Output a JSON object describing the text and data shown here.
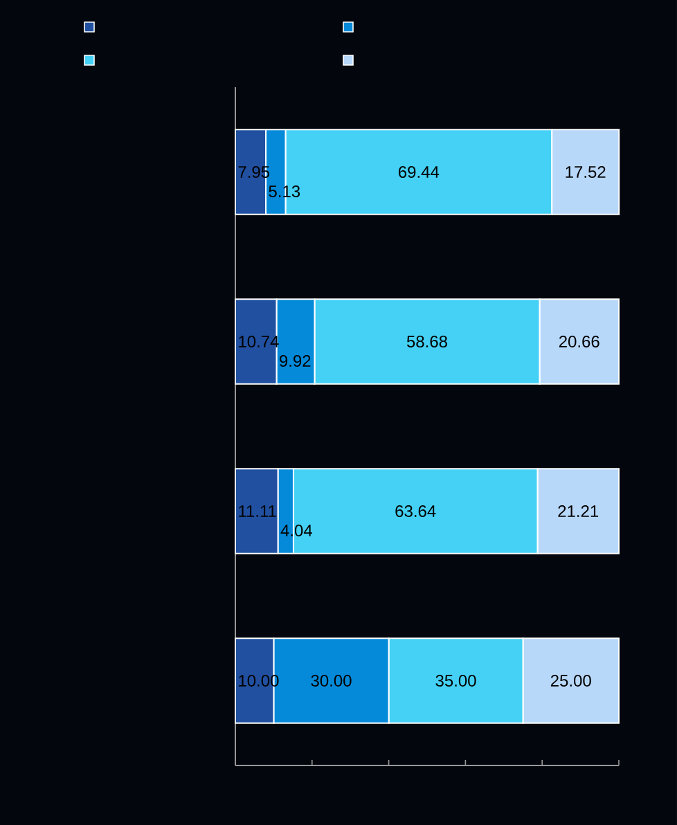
{
  "chart_data": {
    "type": "bar",
    "orientation": "horizontal",
    "stacked": true,
    "categories": [
      null,
      null,
      null,
      null
    ],
    "xlim": [
      0,
      100
    ],
    "xticks": [
      {
        "value": 0,
        "label": null
      },
      {
        "value": 20,
        "label": null
      },
      {
        "value": 40,
        "label": null
      },
      {
        "value": 60,
        "label": null
      },
      {
        "value": 80,
        "label": null
      },
      {
        "value": 100,
        "label": null
      }
    ],
    "data_labels": true,
    "series": [
      {
        "color": "#2150a0",
        "values": [
          7.95,
          10.74,
          11.11,
          10.0
        ],
        "value_labels": [
          "7.95",
          "10.74",
          "11.11",
          "10.00"
        ]
      },
      {
        "color": "#058ad9",
        "values": [
          5.13,
          9.92,
          4.04,
          30.0
        ],
        "value_labels": [
          "5.13",
          "9.92",
          "4.04",
          "30.00"
        ]
      },
      {
        "color": "#45d1f5",
        "values": [
          69.44,
          58.68,
          63.64,
          35.0
        ],
        "value_labels": [
          "69.44",
          "58.68",
          "63.64",
          "35.00"
        ]
      },
      {
        "color": "#b8d8fa",
        "values": [
          17.52,
          20.66,
          21.21,
          25.0
        ],
        "value_labels": [
          "17.52",
          "20.66",
          "21.21",
          "25.00"
        ]
      }
    ]
  }
}
